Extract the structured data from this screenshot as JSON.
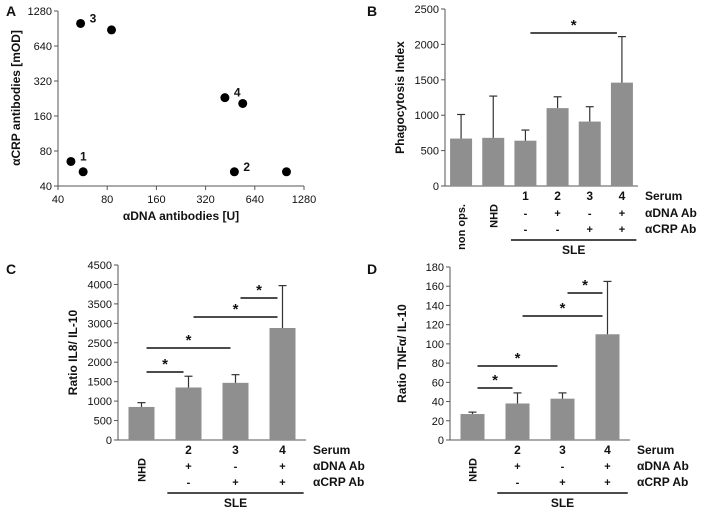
{
  "colors": {
    "bar": "#8f8f8f",
    "axis": "#555555",
    "text": "#111111",
    "marker": "#000000"
  },
  "chart_data": [
    {
      "panel": "A",
      "type": "scatter",
      "xlabel": "αDNA antibodies [U]",
      "ylabel": "αCRP antibodies [mOD]",
      "xscale": "log2",
      "yscale": "log2",
      "xlim": [
        40,
        1280
      ],
      "ylim": [
        40,
        1280
      ],
      "xticks": [
        "40",
        "80",
        "160",
        "320",
        "640",
        "1280"
      ],
      "yticks": [
        "40",
        "80",
        "160",
        "320",
        "640",
        "1280"
      ],
      "points": [
        {
          "x": 55,
          "y": 1000,
          "label": "3"
        },
        {
          "x": 85,
          "y": 880,
          "label": ""
        },
        {
          "x": 48,
          "y": 65,
          "label": "1"
        },
        {
          "x": 57,
          "y": 53,
          "label": ""
        },
        {
          "x": 420,
          "y": 230,
          "label": "4"
        },
        {
          "x": 540,
          "y": 205,
          "label": ""
        },
        {
          "x": 480,
          "y": 53,
          "label": "2"
        },
        {
          "x": 1000,
          "y": 53,
          "label": ""
        }
      ]
    },
    {
      "panel": "B",
      "type": "bar",
      "ylabel": "Phagocytosis Index",
      "ylim": [
        0,
        2500
      ],
      "yticks": [
        "0",
        "500",
        "1000",
        "1500",
        "2000",
        "2500"
      ],
      "categories": [
        "non ops.",
        "NHD",
        "1",
        "2",
        "3",
        "4"
      ],
      "values": [
        670,
        680,
        640,
        1100,
        910,
        1460
      ],
      "errors": [
        340,
        590,
        150,
        160,
        210,
        650
      ],
      "rows": {
        "serum": [
          "",
          "",
          "1",
          "2",
          "3",
          "4"
        ],
        "dna": [
          "",
          "",
          "-",
          "+",
          "-",
          "+"
        ],
        "crp": [
          "",
          "",
          "-",
          "-",
          "+",
          "+"
        ]
      },
      "row_labels": [
        "Serum",
        "αDNA Ab",
        "αCRP Ab"
      ],
      "group_label": "SLE",
      "significance": [
        {
          "from": 2,
          "to": 5,
          "mark": "*"
        }
      ]
    },
    {
      "panel": "C",
      "type": "bar",
      "ylabel": "Ratio IL8/ IL-10",
      "ylim": [
        0,
        4500
      ],
      "yticks": [
        "0",
        "500",
        "1000",
        "1500",
        "2000",
        "2500",
        "3000",
        "3500",
        "4000",
        "4500"
      ],
      "categories": [
        "NHD",
        "2",
        "3",
        "4"
      ],
      "values": [
        850,
        1350,
        1470,
        2880
      ],
      "errors": [
        110,
        290,
        210,
        1090
      ],
      "rows": {
        "serum": [
          "",
          "2",
          "3",
          "4"
        ],
        "dna": [
          "",
          "+",
          "-",
          "+"
        ],
        "crp": [
          "",
          "-",
          "+",
          "+"
        ]
      },
      "row_labels": [
        "Serum",
        "αDNA Ab",
        "αCRP Ab"
      ],
      "group_label": "SLE",
      "significance": [
        {
          "from": 0,
          "to": 1,
          "mark": "*"
        },
        {
          "from": 0,
          "to": 2,
          "mark": "*"
        },
        {
          "from": 1,
          "to": 3,
          "mark": "*"
        },
        {
          "from": 2,
          "to": 3,
          "mark": "*"
        }
      ]
    },
    {
      "panel": "D",
      "type": "bar",
      "ylabel": "Ratio TNFα/ IL-10",
      "ylim": [
        0,
        180
      ],
      "yticks": [
        "0",
        "20",
        "40",
        "60",
        "80",
        "100",
        "120",
        "140",
        "160",
        "180"
      ],
      "categories": [
        "NHD",
        "2",
        "3",
        "4"
      ],
      "values": [
        27,
        38,
        43,
        110
      ],
      "errors": [
        2,
        11,
        6,
        55
      ],
      "rows": {
        "serum": [
          "",
          "2",
          "3",
          "4"
        ],
        "dna": [
          "",
          "+",
          "-",
          "+"
        ],
        "crp": [
          "",
          "-",
          "+",
          "+"
        ]
      },
      "row_labels": [
        "Serum",
        "αDNA Ab",
        "αCRP Ab"
      ],
      "group_label": "SLE",
      "significance": [
        {
          "from": 0,
          "to": 1,
          "mark": "*"
        },
        {
          "from": 0,
          "to": 2,
          "mark": "*"
        },
        {
          "from": 1,
          "to": 3,
          "mark": "*"
        },
        {
          "from": 2,
          "to": 3,
          "mark": "*"
        }
      ]
    }
  ]
}
